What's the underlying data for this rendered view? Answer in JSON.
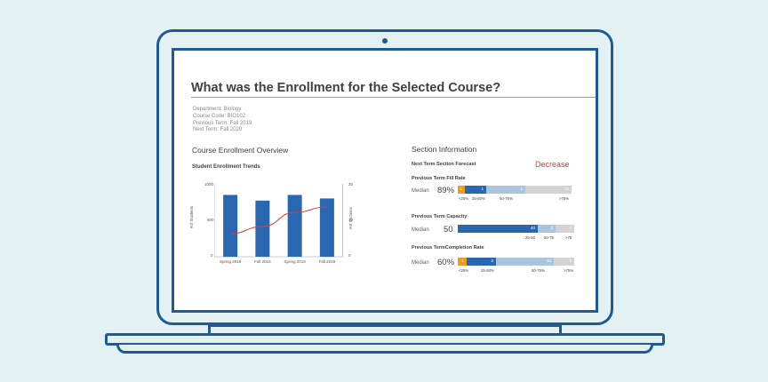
{
  "colors": {
    "background": "#e3f1f3",
    "laptop_outline": "#1f5a94",
    "bar_blue": "#2a67b1",
    "line_red": "#e63b2e",
    "orange": "#f39a1e",
    "light_blue": "#aac6de",
    "gray": "#d3d3d3"
  },
  "page": {
    "title": "What was the Enrollment for the Selected Course?",
    "meta": {
      "department": "Department: Biology",
      "course_code": "Course Code: BIO102",
      "previous_term": "Previous Term: Fall 2019",
      "next_term": "Next Term: Fall 2020"
    }
  },
  "overview": {
    "heading": "Course Enrollment Overview",
    "chart_title": "Student Enrollment Trends",
    "y_left_label": "#of Students",
    "y_right_label": "#of Sections",
    "y_left_ticks": [
      "1000",
      "500",
      "0"
    ],
    "y_right_ticks": [
      "20",
      "10",
      "0"
    ]
  },
  "chart_data": {
    "type": "bar",
    "title": "Student Enrollment Trends",
    "categories": [
      "Spring 2018",
      "Fall 2018",
      "Spring 2019",
      "Fall 2019"
    ],
    "series": [
      {
        "name": "#of Students",
        "type": "bar",
        "axis": "left",
        "values": [
          870,
          790,
          870,
          820
        ]
      },
      {
        "name": "#of Sections",
        "type": "line",
        "axis": "right",
        "values": [
          6.5,
          8.5,
          12.5,
          14
        ]
      }
    ],
    "ylabel": "#of Students",
    "y2label": "#of Sections",
    "ylim": [
      0,
      1000
    ],
    "y2lim": [
      0,
      20
    ],
    "grid": false
  },
  "section": {
    "heading": "Section Information",
    "forecast_label": "Next Term Section Forecast",
    "forecast_value": "Decrease",
    "fill_rate": {
      "title": "Previous Term Fill Rate",
      "median_label": "Median",
      "median_value": "89%",
      "segments": [
        "1",
        "1",
        "1",
        "10"
      ],
      "scale": [
        "<25%",
        "25-50%",
        "50-75%",
        ">75%"
      ]
    },
    "capacity": {
      "title": "Previous Term Capacity",
      "median_label": "Median",
      "median_value": "50",
      "segments": [
        "40",
        "2",
        "3"
      ],
      "scale": [
        "25-50",
        "50-75",
        ">75"
      ]
    },
    "completion": {
      "title": "Previous TermCompletion Rate",
      "median_label": "Median",
      "median_value": "60%",
      "segments": [
        "1",
        "2",
        "44",
        "3"
      ],
      "scale": [
        "<25%",
        "25-50%",
        "50-75%",
        ">75%"
      ]
    }
  }
}
